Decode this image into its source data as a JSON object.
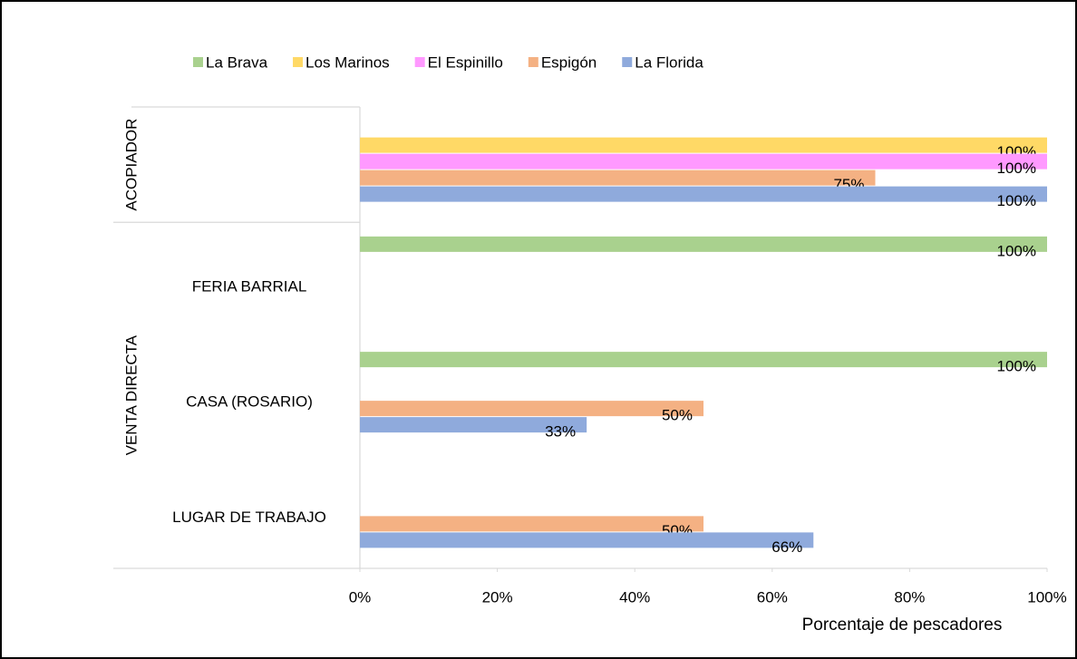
{
  "chart_data": {
    "type": "bar",
    "orientation": "horizontal",
    "groups": [
      {
        "label": "ACOPIADOR",
        "categories": [
          null
        ]
      },
      {
        "label": "VENTA DIRECTA",
        "categories": [
          "FERIA BARRIAL",
          "CASA (ROSARIO)",
          "LUGAR DE TRABAJO"
        ]
      }
    ],
    "series": [
      {
        "name": "La Brava",
        "color": "#a9d18e",
        "values": [
          null,
          100,
          100,
          null
        ],
        "value_labels": [
          null,
          "100%",
          "100%",
          null
        ]
      },
      {
        "name": "Los Marinos",
        "color": "#ffd966",
        "values": [
          100,
          null,
          null,
          null
        ],
        "value_labels": [
          "100%",
          null,
          null,
          null
        ]
      },
      {
        "name": "El Espinillo",
        "color": "#ff99ff",
        "values": [
          100,
          null,
          null,
          null
        ],
        "value_labels": [
          "100%",
          null,
          null,
          null
        ]
      },
      {
        "name": "Espigón",
        "color": "#f4b183",
        "values": [
          75,
          null,
          50,
          50
        ],
        "value_labels": [
          "75%",
          null,
          "50%",
          "50%"
        ]
      },
      {
        "name": "La Florida",
        "color": "#8faadc",
        "values": [
          100,
          null,
          33,
          66
        ],
        "value_labels": [
          "100%",
          null,
          "33%",
          "66%"
        ]
      }
    ],
    "xlabel": "Porcentaje de pescadores",
    "xlim": [
      0,
      100
    ],
    "xticks": [
      {
        "value": 0,
        "label": "0%"
      },
      {
        "value": 20,
        "label": "20%"
      },
      {
        "value": 40,
        "label": "40%"
      },
      {
        "value": 60,
        "label": "60%"
      },
      {
        "value": 80,
        "label": "80%"
      },
      {
        "value": 100,
        "label": "100%"
      }
    ],
    "legend": "top",
    "grid": false
  }
}
